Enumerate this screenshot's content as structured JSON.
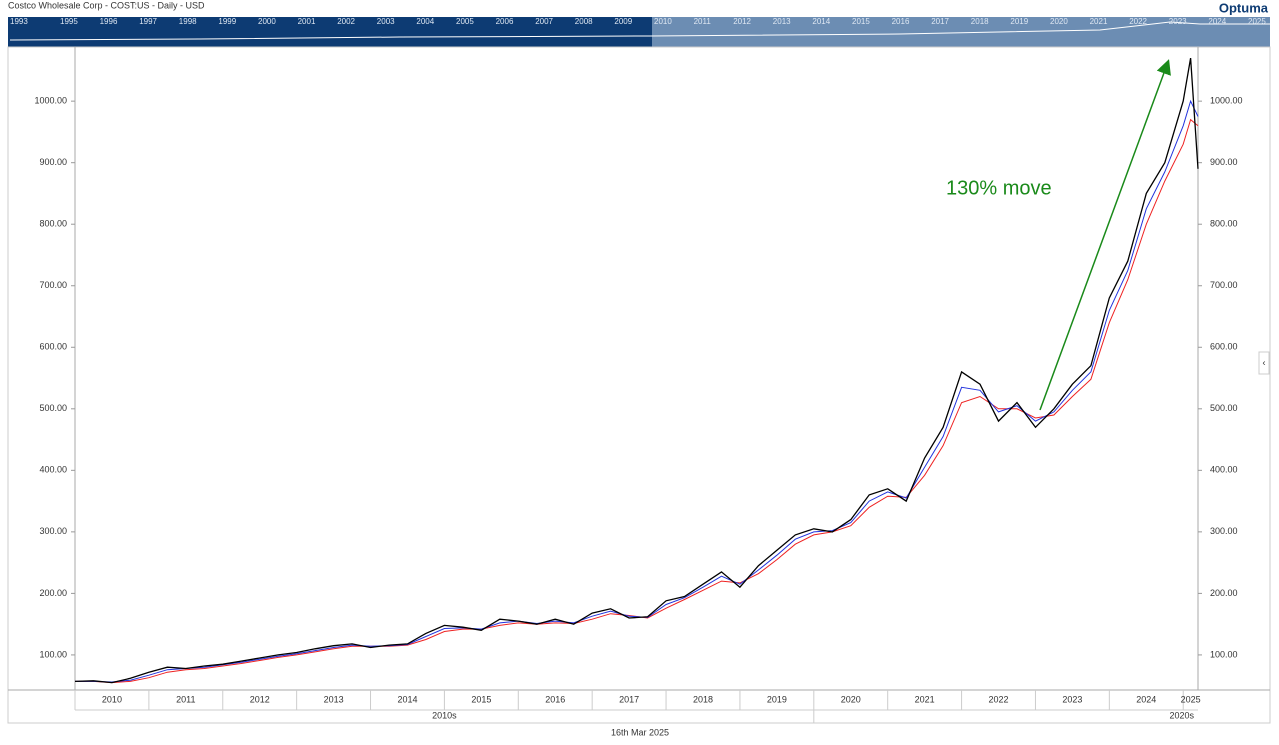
{
  "chart_data": {
    "type": "line",
    "title": "Costco Wholesale Corp - COST:US - Daily - USD",
    "logo": "Optuma",
    "navigator_years": [
      "1993",
      "1995",
      "1996",
      "1997",
      "1998",
      "1999",
      "2000",
      "2001",
      "2002",
      "2003",
      "2004",
      "2005",
      "2006",
      "2007",
      "2008",
      "2009",
      "2010",
      "2011",
      "2012",
      "2013",
      "2014",
      "2015",
      "2016",
      "2017",
      "2018",
      "2019",
      "2020",
      "2021",
      "2022",
      "2023",
      "2024",
      "2025"
    ],
    "annotation": "130% move",
    "footer": "16th Mar 2025",
    "decade_labels": [
      "2010s",
      "2020s"
    ],
    "x": [
      2010.0,
      2010.25,
      2010.5,
      2010.75,
      2011.0,
      2011.25,
      2011.5,
      2011.75,
      2012.0,
      2012.25,
      2012.5,
      2012.75,
      2013.0,
      2013.25,
      2013.5,
      2013.75,
      2014.0,
      2014.25,
      2014.5,
      2014.75,
      2015.0,
      2015.25,
      2015.5,
      2015.75,
      2016.0,
      2016.25,
      2016.5,
      2016.75,
      2017.0,
      2017.25,
      2017.5,
      2017.75,
      2018.0,
      2018.25,
      2018.5,
      2018.75,
      2019.0,
      2019.25,
      2019.5,
      2019.75,
      2020.0,
      2020.25,
      2020.5,
      2020.75,
      2021.0,
      2021.25,
      2021.5,
      2021.75,
      2022.0,
      2022.25,
      2022.5,
      2022.75,
      2023.0,
      2023.25,
      2023.5,
      2023.75,
      2024.0,
      2024.25,
      2024.5,
      2024.75,
      2025.0,
      2025.1,
      2025.2
    ],
    "series": [
      {
        "color": "#000000",
        "values": [
          57,
          58,
          55,
          62,
          72,
          80,
          78,
          82,
          85,
          90,
          95,
          100,
          104,
          110,
          115,
          118,
          112,
          116,
          118,
          135,
          148,
          145,
          140,
          158,
          155,
          150,
          158,
          150,
          168,
          175,
          160,
          162,
          188,
          195,
          215,
          235,
          210,
          245,
          270,
          295,
          305,
          300,
          320,
          360,
          370,
          350,
          420,
          470,
          560,
          540,
          480,
          510,
          470,
          500,
          540,
          570,
          680,
          740,
          850,
          900,
          1000,
          1070,
          890
        ]
      },
      {
        "color": "#2233dd",
        "values": [
          57,
          57,
          56,
          59,
          67,
          76,
          78,
          80,
          84,
          88,
          93,
          98,
          102,
          107,
          112,
          116,
          114,
          115,
          117,
          130,
          143,
          144,
          142,
          152,
          155,
          151,
          155,
          152,
          163,
          171,
          163,
          161,
          182,
          193,
          210,
          228,
          215,
          238,
          262,
          288,
          300,
          302,
          315,
          350,
          365,
          355,
          405,
          455,
          535,
          530,
          495,
          505,
          480,
          495,
          530,
          560,
          660,
          725,
          825,
          885,
          960,
          1000,
          975
        ]
      },
      {
        "color": "#ee2222",
        "values": [
          57,
          57,
          55,
          57,
          63,
          72,
          76,
          78,
          82,
          86,
          91,
          96,
          100,
          105,
          110,
          114,
          114,
          114,
          116,
          125,
          138,
          142,
          142,
          148,
          152,
          150,
          152,
          151,
          158,
          167,
          164,
          160,
          176,
          190,
          205,
          220,
          217,
          232,
          255,
          280,
          295,
          300,
          310,
          340,
          358,
          356,
          392,
          440,
          510,
          520,
          500,
          500,
          485,
          490,
          520,
          548,
          640,
          710,
          800,
          870,
          930,
          970,
          960
        ]
      }
    ],
    "xlim": [
      2010,
      2025.2
    ],
    "xticks": [
      2010,
      2011,
      2012,
      2013,
      2014,
      2015,
      2016,
      2017,
      2018,
      2019,
      2020,
      2021,
      2022,
      2023,
      2024,
      2025
    ],
    "ylim": [
      43,
      1088
    ],
    "yticks": [
      {
        "value": 100,
        "label": "100.00"
      },
      {
        "value": 200,
        "label": "200.00"
      },
      {
        "value": 300,
        "label": "300.00"
      },
      {
        "value": 400,
        "label": "400.00"
      },
      {
        "value": 500,
        "label": "500.00"
      },
      {
        "value": 600,
        "label": "600.00"
      },
      {
        "value": 700,
        "label": "700.00"
      },
      {
        "value": 800,
        "label": "800.00"
      },
      {
        "value": 900,
        "label": "900.00"
      },
      {
        "value": 1000,
        "label": "1000.00"
      }
    ],
    "grid": false
  }
}
